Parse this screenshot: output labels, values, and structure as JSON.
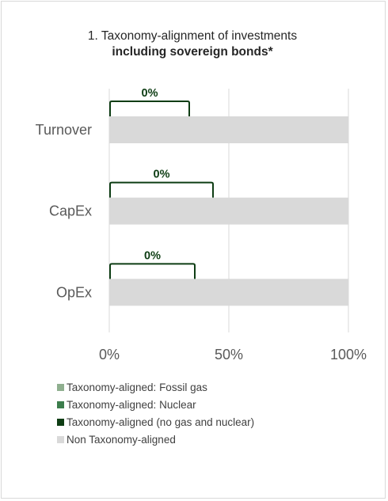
{
  "title": {
    "line1": "1. Taxonomy-alignment of investments",
    "line2": "including sovereign bonds*"
  },
  "colors": {
    "fossil_gas": "#8faf8f",
    "nuclear": "#3c7d4c",
    "no_gas_nuclear": "#0e3d14",
    "non_aligned": "#d9d9d9",
    "bracket": "#0e3d14",
    "grid": "#d9d9d9",
    "text": "#595959"
  },
  "chart_data": {
    "type": "bar",
    "orientation": "horizontal",
    "stacked": true,
    "categories": [
      "Turnover",
      "CapEx",
      "OpEx"
    ],
    "series": [
      {
        "name": "Taxonomy-aligned: Fossil gas",
        "values": [
          0,
          0,
          0
        ]
      },
      {
        "name": "Taxonomy-aligned: Nuclear",
        "values": [
          0,
          0,
          0
        ]
      },
      {
        "name": "Taxonomy-aligned (no gas and nuclear)",
        "values": [
          0,
          0,
          0
        ]
      },
      {
        "name": "Non Taxonomy-aligned",
        "values": [
          100,
          100,
          100
        ]
      }
    ],
    "data_labels": [
      "0%",
      "0%",
      "0%"
    ],
    "xlim": [
      0,
      100
    ],
    "xticks": [
      "0%",
      "50%",
      "100%"
    ],
    "grid": true,
    "legend_position": "bottom"
  }
}
